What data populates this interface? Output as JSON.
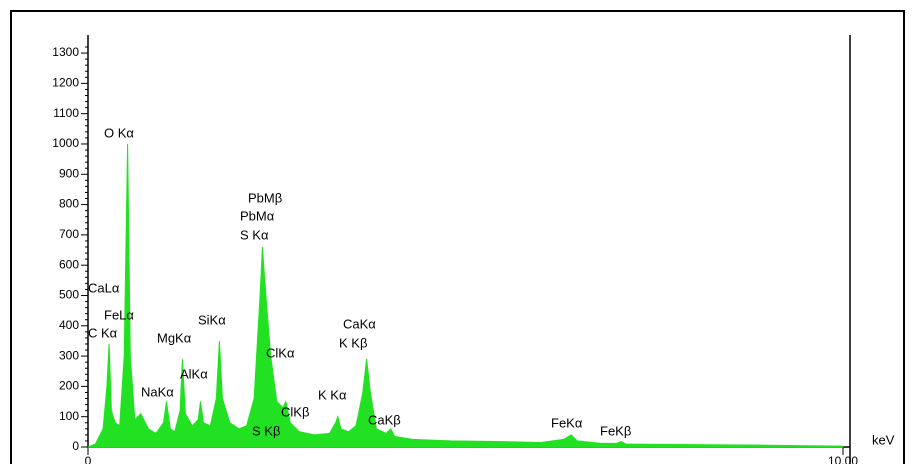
{
  "chart_data": {
    "type": "spectrum",
    "x_label": "keV",
    "color": "#22e022",
    "x": [
      0.0,
      0.1,
      0.2,
      0.25,
      0.28,
      0.31,
      0.36,
      0.42,
      0.48,
      0.525,
      0.56,
      0.62,
      0.7,
      0.8,
      0.9,
      1.0,
      1.04,
      1.09,
      1.15,
      1.22,
      1.25,
      1.29,
      1.38,
      1.46,
      1.49,
      1.53,
      1.62,
      1.7,
      1.74,
      1.78,
      1.88,
      2.0,
      2.1,
      2.2,
      2.28,
      2.31,
      2.35,
      2.42,
      2.5,
      2.58,
      2.62,
      2.68,
      2.8,
      3.0,
      3.2,
      3.28,
      3.31,
      3.35,
      3.45,
      3.55,
      3.64,
      3.69,
      3.74,
      3.82,
      3.95,
      4.01,
      4.06,
      4.3,
      4.8,
      5.4,
      6.0,
      6.3,
      6.4,
      6.48,
      6.8,
      7.0,
      7.06,
      7.12,
      8.0,
      9.0,
      10.0
    ],
    "values": [
      0,
      10,
      60,
      200,
      340,
      120,
      80,
      70,
      300,
      1000,
      300,
      90,
      110,
      60,
      45,
      80,
      150,
      60,
      50,
      120,
      290,
      110,
      70,
      90,
      150,
      80,
      70,
      160,
      350,
      160,
      80,
      60,
      70,
      160,
      500,
      660,
      520,
      300,
      150,
      130,
      150,
      80,
      50,
      40,
      45,
      80,
      100,
      60,
      50,
      70,
      180,
      290,
      180,
      60,
      45,
      60,
      35,
      25,
      20,
      18,
      15,
      25,
      40,
      20,
      12,
      12,
      18,
      10,
      8,
      6,
      3
    ],
    "xlim": [
      0,
      10
    ],
    "xticks": [
      0,
      {
        "value": 10,
        "label": "10.00"
      }
    ],
    "ylim": [
      0,
      1320
    ],
    "yticks": [
      0,
      100,
      200,
      300,
      400,
      500,
      600,
      700,
      800,
      900,
      1000,
      1100,
      1200,
      1300
    ],
    "annotations": [
      "O Kα",
      "CaLα",
      "C Kα",
      "FeLα",
      "MgKα",
      "SiKα",
      "NaKα",
      "AlKα",
      "PbMβ",
      "PbMα",
      "S Kα",
      "ClKα",
      "ClKβ",
      "S Kβ",
      "K Kα",
      "CaKα",
      "K Kβ",
      "CaKβ",
      "FeKα",
      "FeKβ"
    ]
  }
}
